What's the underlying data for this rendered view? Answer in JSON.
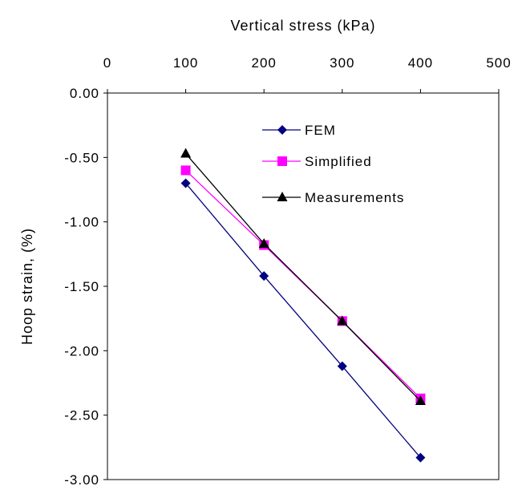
{
  "chart_data": {
    "type": "line",
    "title": "",
    "xlabel": "Vertical stress (kPa)",
    "ylabel": "Hoop strain, (%)",
    "xlim": [
      0,
      500
    ],
    "ylim": [
      -3.0,
      0.0
    ],
    "x_axis_position": "top",
    "x_ticks": [
      "0",
      "100",
      "200",
      "300",
      "400",
      "500"
    ],
    "y_ticks": [
      "0.00",
      "-0.50",
      "-1.00",
      "-1.50",
      "-2.00",
      "-2.50",
      "-3.00"
    ],
    "grid": false,
    "legend_position": "top-right",
    "series": [
      {
        "name": "FEM",
        "x": [
          100,
          200,
          300,
          400
        ],
        "y": [
          -0.7,
          -1.42,
          -2.12,
          -2.83
        ],
        "color": "#000080",
        "marker": "diamond"
      },
      {
        "name": "Simplified",
        "x": [
          100,
          200,
          300,
          400
        ],
        "y": [
          -0.6,
          -1.18,
          -1.77,
          -2.37
        ],
        "color": "#ff00ff",
        "marker": "square"
      },
      {
        "name": "Measurements",
        "x": [
          100,
          200,
          300,
          400
        ],
        "y": [
          -0.47,
          -1.17,
          -1.77,
          -2.39
        ],
        "color": "#000000",
        "marker": "triangle"
      }
    ]
  }
}
